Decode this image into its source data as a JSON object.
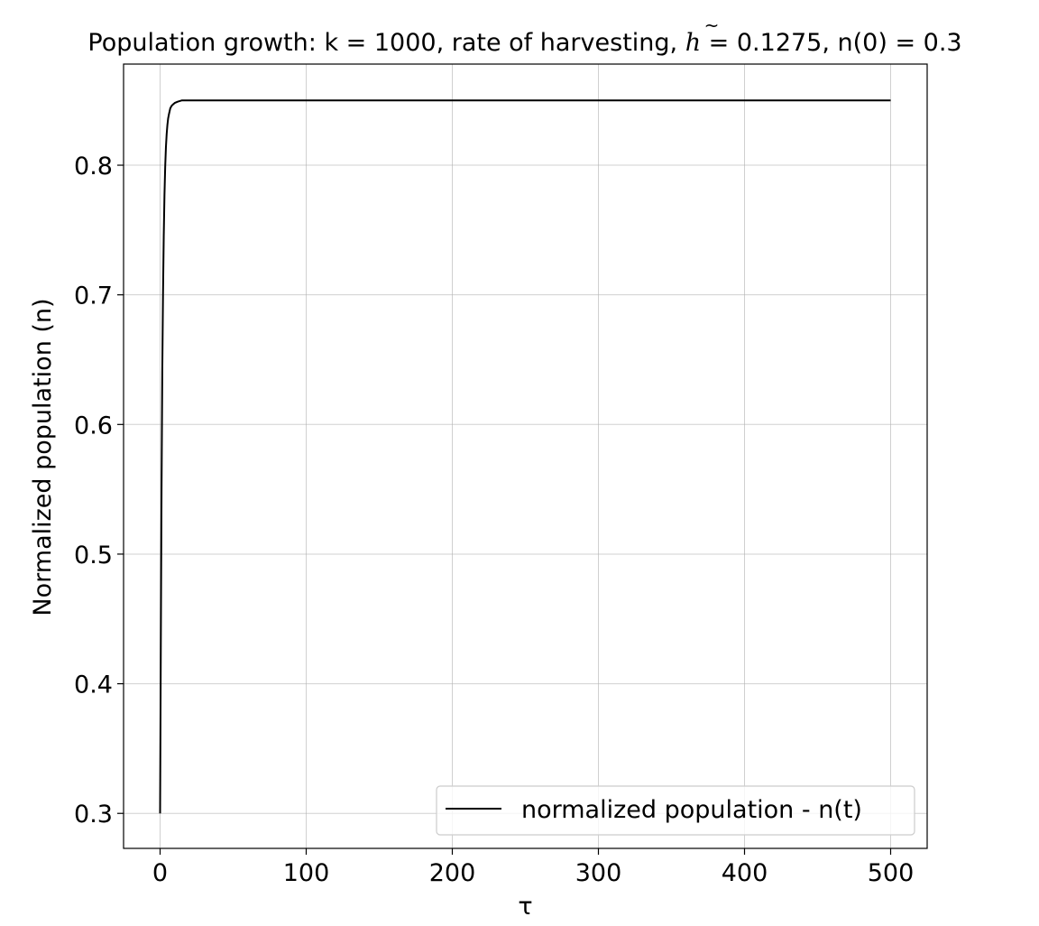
{
  "chart_data": {
    "type": "line",
    "title_parts": {
      "prefix": "Population growth: k = 1000, rate of harvesting, ",
      "symbol": "h",
      "suffix": " = 0.1275, n(0) = 0.3"
    },
    "xlabel": "τ",
    "ylabel": "Normalized population (n)",
    "xlim": [
      -25,
      525
    ],
    "ylim": [
      0.273,
      0.878
    ],
    "x_ticks": [
      0,
      100,
      200,
      300,
      400,
      500
    ],
    "x_tick_labels": [
      "0",
      "100",
      "200",
      "300",
      "400",
      "500"
    ],
    "y_ticks": [
      0.3,
      0.4,
      0.5,
      0.6,
      0.7,
      0.8
    ],
    "y_tick_labels": [
      "0.3",
      "0.4",
      "0.5",
      "0.6",
      "0.7",
      "0.8"
    ],
    "grid": true,
    "legend_position": "lower-right",
    "series": [
      {
        "name": "normalized population - n(t)",
        "color": "#000000",
        "x": [
          0,
          0.5,
          1,
          1.5,
          2,
          2.5,
          3,
          3.5,
          4,
          4.5,
          5,
          5.5,
          6,
          7,
          8,
          9,
          10,
          12,
          15,
          20,
          30,
          50,
          100,
          150,
          200,
          250,
          300,
          350,
          400,
          450,
          500
        ],
        "y": [
          0.3,
          0.43,
          0.55,
          0.64,
          0.7,
          0.745,
          0.777,
          0.799,
          0.814,
          0.824,
          0.831,
          0.836,
          0.839,
          0.844,
          0.846,
          0.847,
          0.848,
          0.849,
          0.85,
          0.85,
          0.85,
          0.85,
          0.85,
          0.85,
          0.85,
          0.85,
          0.85,
          0.85,
          0.85,
          0.85,
          0.85
        ]
      }
    ]
  }
}
